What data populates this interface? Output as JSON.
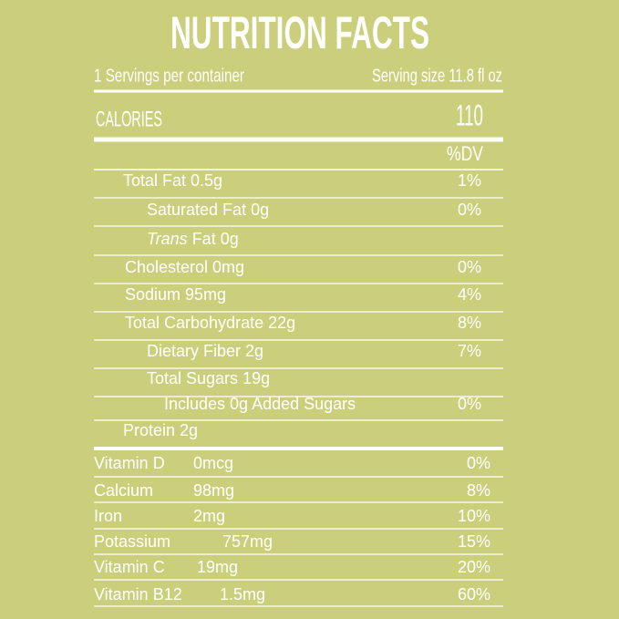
{
  "title": "NUTRITION FACTS",
  "servings": "1 Servings per container",
  "serving_size": "Serving size 11.8 fl oz",
  "calories": {
    "label": "CALORIES",
    "value": "110"
  },
  "dv_header": "%DV",
  "nutrients": [
    {
      "label": "Total Fat 0.5g",
      "dv": "1%"
    },
    {
      "label": "Saturated Fat 0g",
      "dv": "0%"
    },
    {
      "label_italic": "Trans",
      "label": "Fat 0g"
    },
    {
      "label": "Cholesterol 0mg",
      "dv": "0%"
    },
    {
      "label": "Sodium 95mg",
      "dv": "4%"
    },
    {
      "label": "Total Carbohydrate 22g",
      "dv": "8%"
    },
    {
      "label": "Dietary Fiber 2g",
      "dv": "7%"
    },
    {
      "label": "Total Sugars  19g"
    },
    {
      "label": "Includes 0g Added Sugars",
      "dv": "0%"
    },
    {
      "label": "Protein 2g"
    }
  ],
  "vitamins": [
    {
      "name": "Vitamin D",
      "amount": "0mcg",
      "dv": "0%"
    },
    {
      "name": "Calcium",
      "amount": "98mg",
      "dv": "8%"
    },
    {
      "name": "Iron",
      "amount": "2mg",
      "dv": "10%"
    },
    {
      "name": "Potassium",
      "amount": "757mg",
      "dv": "15%"
    },
    {
      "name": "Vitamin C",
      "amount": "19mg",
      "dv": "20%"
    },
    {
      "name": "Vitamin B12",
      "amount": "1.5mg",
      "dv": "60%"
    }
  ]
}
